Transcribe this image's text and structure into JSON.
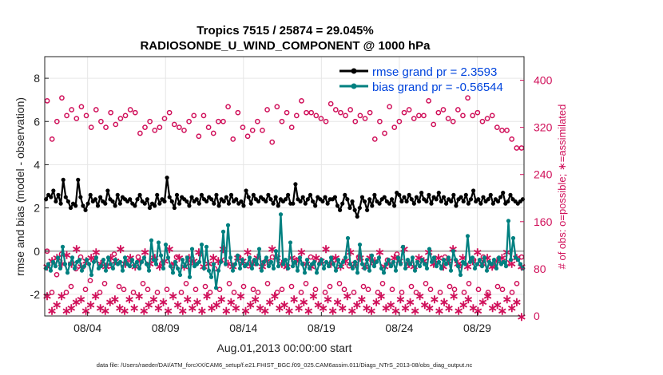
{
  "chart_data": {
    "type": "line",
    "title_line1": "Tropics 7515 / 25874 = 29.045%",
    "title_line2": "RADIOSONDE_U_WIND_COMPONENT @ 1000 hPa",
    "xlabel": "Aug.01,2013 00:00:00 start",
    "ylabel_left": "rmse and bias (model - observation)",
    "ylabel_right": "# of obs: o=possible; ∗=assimilated",
    "footer": "data file: /Users/raeder/DAI/ATM_forcXX/CAM6_setup/f.e21.FHIST_BGC.f09_025.CAM6assim.011/Diags_NTrS_2013-08/obs_diag_output.nc",
    "x_unit": "days since Aug 1 2013",
    "xlim": [
      0.25,
      31.0
    ],
    "ylim_left": [
      -3,
      9
    ],
    "ylim_right": [
      0,
      440
    ],
    "x_ticks": [
      {
        "value": 3,
        "label": "08/04"
      },
      {
        "value": 8,
        "label": "08/09"
      },
      {
        "value": 13,
        "label": "08/14"
      },
      {
        "value": 18,
        "label": "08/19"
      },
      {
        "value": 23,
        "label": "08/24"
      },
      {
        "value": 28,
        "label": "08/29"
      }
    ],
    "y_ticks_left": [
      -2,
      0,
      2,
      4,
      6,
      8
    ],
    "y_ticks_right": [
      0,
      80,
      160,
      240,
      320,
      400
    ],
    "zero_line": 0,
    "legend": [
      {
        "label": "rmse grand pr = 2.3593",
        "color": "#000000"
      },
      {
        "label": "bias grand pr = -0.56544",
        "color": "#008080"
      }
    ],
    "colors": {
      "rmse": "#000000",
      "bias": "#008080",
      "obs": "#d0105a",
      "legend_text": "#0044dd",
      "zero_line": "#b0b0b0",
      "grid": "#e6e6e6"
    },
    "rmse": [
      2.4,
      2.6,
      2.5,
      2.8,
      2.3,
      2.6,
      2.2,
      3.3,
      2.5,
      2.3,
      2.0,
      2.2,
      2.1,
      3.3,
      2.5,
      2.1,
      1.9,
      2.2,
      2.6,
      2.3,
      2.4,
      2.1,
      2.5,
      2.3,
      2.2,
      2.8,
      2.4,
      2.3,
      2.1,
      2.6,
      2.2,
      2.5,
      2.4,
      2.3,
      2.4,
      2.2,
      2.1,
      2.4,
      2.6,
      2.3,
      2.2,
      2.4,
      2.0,
      2.2,
      2.1,
      2.6,
      2.2,
      2.4,
      2.3,
      3.4,
      2.5,
      2.3,
      2.0,
      2.6,
      2.2,
      2.5,
      2.4,
      2.3,
      2.1,
      2.5,
      2.3,
      2.4,
      2.2,
      2.6,
      2.4,
      2.3,
      2.5,
      2.4,
      2.2,
      2.6,
      2.1,
      2.4,
      2.3,
      2.5,
      2.2,
      2.6,
      2.3,
      2.4,
      2.2,
      2.3,
      2.1,
      2.8,
      2.5,
      2.2,
      2.6,
      2.4,
      2.3,
      2.5,
      2.4,
      2.3,
      2.6,
      2.4,
      2.2,
      2.5,
      2.1,
      2.4,
      2.3,
      2.4,
      2.6,
      2.2,
      2.2,
      3.1,
      2.4,
      2.3,
      2.5,
      2.2,
      2.4,
      2.6,
      2.3,
      2.1,
      2.5,
      2.4,
      2.3,
      2.5,
      2.2,
      2.4,
      2.4,
      2.5,
      2.1,
      1.9,
      2.2,
      2.6,
      2.4,
      2.0,
      2.3,
      1.9,
      1.6,
      2.0,
      2.5,
      2.3,
      1.9,
      2.4,
      2.1,
      2.6,
      2.3,
      2.2,
      2.4,
      2.5,
      2.3,
      2.2,
      2.4,
      2.1,
      2.7,
      2.6,
      2.3,
      2.5,
      2.3,
      2.6,
      2.4,
      2.2,
      2.5,
      2.3,
      2.7,
      2.4,
      2.3,
      2.6,
      2.2,
      2.5,
      2.4,
      2.7,
      2.3,
      2.5,
      2.2,
      2.4,
      2.3,
      2.6,
      2.1,
      2.4,
      2.5,
      2.3,
      2.6,
      2.2,
      2.4,
      2.8,
      2.3,
      2.4,
      2.2,
      2.5,
      2.3,
      2.4,
      2.6,
      2.2,
      2.4,
      2.3,
      2.5,
      2.7,
      2.2,
      2.3,
      2.6,
      2.4,
      2.3,
      2.2,
      2.3,
      2.4
    ],
    "bias": [
      -0.8,
      -0.6,
      -0.9,
      -0.5,
      -0.7,
      -0.3,
      -0.8,
      0.2,
      -0.6,
      -1.0,
      -0.6,
      -0.3,
      -0.8,
      -0.5,
      -0.4,
      -0.9,
      -0.7,
      -0.4,
      -0.6,
      -1.1,
      -0.5,
      -0.3,
      -0.8,
      -0.7,
      -0.4,
      -0.9,
      -0.3,
      -0.6,
      -0.8,
      -0.4,
      -0.6,
      -0.5,
      -0.9,
      -0.3,
      -0.6,
      -0.7,
      -0.4,
      -0.7,
      -0.5,
      -0.8,
      -0.5,
      -0.3,
      -0.6,
      -0.9,
      0.5,
      -0.4,
      -0.6,
      0.4,
      -0.2,
      -0.8,
      0.3,
      -0.3,
      -0.7,
      -1.0,
      -0.5,
      -0.8,
      -1.1,
      -0.4,
      -0.7,
      -0.3,
      -1.2,
      0.1,
      -0.7,
      -0.6,
      -0.5,
      0.3,
      -0.8,
      0.2,
      -0.9,
      -1.2,
      -0.6,
      -1.7,
      -0.9,
      -0.5,
      0.9,
      -0.6,
      1.2,
      -0.3,
      -0.9,
      -0.6,
      -0.2,
      -0.8,
      -0.4,
      -0.7,
      -0.6,
      -0.3,
      -0.8,
      -0.4,
      -0.6,
      0.1,
      -0.9,
      -0.5,
      -0.3,
      -0.7,
      -0.5,
      -0.8,
      0.0,
      -0.7,
      1.7,
      -0.6,
      -0.4,
      -0.8,
      0.4,
      -0.7,
      -0.5,
      -0.9,
      -0.3,
      -0.6,
      -1.0,
      -0.4,
      -0.8,
      -0.6,
      -0.5,
      -1.0,
      -0.6,
      -0.4,
      -0.8,
      -0.5,
      -0.7,
      -0.3,
      -0.6,
      -0.9,
      -0.4,
      -0.7,
      -0.5,
      -0.3,
      0.6,
      -0.6,
      -0.8,
      -0.5,
      -1.0,
      0.3,
      -0.6,
      -0.8,
      -0.4,
      -0.9,
      -0.2,
      -0.7,
      -0.5,
      -0.3,
      -0.8,
      -1.0,
      -0.6,
      -0.4,
      -0.7,
      -0.5,
      -0.9,
      -0.3,
      -0.6,
      0.2,
      -0.8,
      -0.4,
      -0.6,
      -0.3,
      -0.9,
      -0.5,
      -0.7,
      -0.4,
      -0.6,
      -0.8,
      0.1,
      -0.5,
      -0.3,
      -0.7,
      -0.5,
      -0.8,
      -0.4,
      -0.6,
      -0.3,
      -0.9,
      0.0,
      -0.4,
      -0.7,
      -1.1,
      -0.5,
      -0.6,
      0.7,
      -0.5,
      -0.3,
      -0.8,
      -0.6,
      -0.4,
      -0.7,
      -0.3,
      -0.9,
      -0.5,
      -0.6,
      -0.4,
      -0.8,
      -0.3,
      -0.6,
      -0.5,
      -0.7,
      1.4,
      -0.4,
      0.6,
      -0.3,
      -0.4,
      -0.6,
      -0.8
    ],
    "obs_possible": [
      365,
      300,
      330,
      370,
      340,
      350,
      335,
      355,
      340,
      320,
      350,
      330,
      320,
      345,
      325,
      335,
      340,
      350,
      345,
      310,
      320,
      330,
      315,
      320,
      335,
      345,
      325,
      320,
      315,
      330,
      340,
      305,
      340,
      320,
      310,
      330,
      330,
      355,
      300,
      345,
      320,
      305,
      315,
      330,
      315,
      350,
      295,
      355,
      330,
      345,
      320,
      340,
      365,
      345,
      345,
      340,
      335,
      330,
      360,
      350,
      345,
      340,
      350,
      330,
      340,
      335,
      345,
      300,
      330,
      310,
      355,
      320,
      330,
      345,
      350,
      335,
      340,
      340,
      365,
      325,
      345,
      350,
      335,
      330,
      350,
      340,
      370,
      340,
      345,
      330,
      335,
      340,
      320,
      315,
      315,
      300,
      285,
      285
    ],
    "obs_possible_low": [
      110,
      40,
      70,
      105,
      40,
      50,
      80,
      100,
      45,
      60,
      95,
      40,
      55,
      85,
      105,
      50,
      45,
      90,
      40,
      100,
      55,
      45,
      95,
      40,
      90,
      45,
      85,
      100,
      40,
      55,
      90,
      45,
      105,
      50,
      40,
      80,
      45,
      95,
      55,
      40,
      100,
      50,
      85,
      45,
      40,
      90,
      55,
      100,
      40,
      45,
      85,
      50,
      95,
      40,
      55,
      100,
      45,
      90,
      40,
      50,
      95,
      55,
      45,
      85,
      40,
      100,
      50,
      45,
      90,
      40,
      55,
      95,
      45,
      105,
      40,
      85,
      50,
      40,
      95,
      55,
      45,
      90,
      40,
      100,
      50,
      45,
      85,
      40,
      55,
      95,
      45,
      100,
      40,
      85,
      50,
      45,
      90,
      40,
      55,
      100
    ],
    "obs_assimilated_high": [
      85,
      95,
      100,
      90,
      105,
      90,
      115,
      85,
      95,
      100,
      110,
      90,
      85,
      100,
      95,
      115,
      90,
      100,
      85,
      95,
      110,
      90,
      100,
      85,
      95,
      115,
      90,
      100,
      85,
      100,
      95,
      110,
      85,
      90,
      100,
      95,
      115,
      90,
      85,
      100,
      95,
      110,
      90,
      100,
      85,
      95,
      115,
      100,
      90,
      85,
      100,
      95,
      110,
      90,
      85,
      100,
      95,
      115,
      90,
      100,
      85,
      95,
      110,
      90,
      100,
      85,
      100,
      95,
      110,
      85,
      90,
      100,
      95,
      115,
      90,
      85,
      100,
      95,
      110,
      90,
      100,
      85,
      95,
      115,
      90,
      100,
      85,
      95,
      110,
      90,
      100,
      85,
      95,
      100,
      110,
      90,
      100,
      85
    ],
    "obs_assimilated_low": [
      35,
      10,
      20,
      35,
      10,
      15,
      25,
      30,
      10,
      20,
      35,
      15,
      10,
      25,
      30,
      15,
      10,
      30,
      15,
      35,
      10,
      20,
      30,
      15,
      25,
      10,
      35,
      20,
      10,
      30,
      15,
      25,
      10,
      35,
      15,
      20,
      30,
      10,
      25,
      15,
      35,
      10,
      20,
      30,
      15,
      10,
      25,
      35,
      15,
      20,
      10,
      30,
      15,
      25,
      10,
      35,
      20,
      15,
      30,
      10,
      25,
      15,
      35,
      10,
      20,
      30,
      15,
      10,
      25,
      35,
      15,
      20,
      10,
      30,
      15,
      25,
      10,
      35,
      20,
      15,
      30,
      10,
      25,
      15,
      35,
      10,
      20,
      30,
      15,
      10,
      25,
      35,
      15,
      20,
      10,
      30,
      15,
      25,
      0
    ]
  }
}
